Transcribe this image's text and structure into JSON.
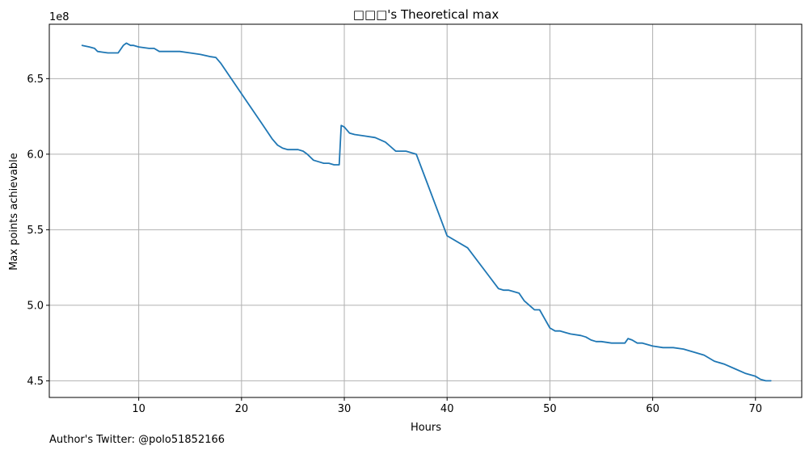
{
  "chart_data": {
    "type": "line",
    "title": "□□□'s Theoretical max",
    "xlabel": "Hours",
    "ylabel": "Max points achievable",
    "y_offset_label": "1e8",
    "xlim": [
      1.3,
      74.5
    ],
    "ylim": [
      4.39,
      6.86
    ],
    "xticks": [
      10,
      20,
      30,
      40,
      50,
      60,
      70
    ],
    "yticks": [
      4.5,
      5.0,
      5.5,
      6.0,
      6.5
    ],
    "ytick_labels": [
      "4.5",
      "5.0",
      "5.5",
      "6.0",
      "6.5"
    ],
    "grid": true,
    "legend": "none",
    "series": [
      {
        "color": "#1f77b4",
        "x": [
          4.5,
          5.2,
          5.7,
          6.0,
          6.5,
          7.0,
          7.5,
          8.0,
          8.5,
          8.8,
          9.2,
          9.5,
          10.0,
          11.0,
          11.5,
          12.0,
          12.5,
          13.0,
          14.0,
          15.0,
          16.0,
          17.0,
          17.5,
          18.0,
          20.0,
          22.0,
          23.0,
          23.5,
          24.0,
          24.5,
          25.0,
          25.5,
          26.0,
          26.4,
          27.0,
          27.5,
          28.0,
          28.5,
          29.0,
          29.5,
          29.7,
          30.0,
          30.5,
          31.0,
          32.0,
          33.0,
          34.0,
          34.5,
          35.0,
          36.0,
          37.0,
          38.0,
          40.0,
          42.0,
          44.0,
          45.0,
          45.5,
          46.0,
          47.0,
          47.5,
          48.0,
          48.5,
          49.0,
          49.5,
          50.0,
          50.5,
          51.0,
          51.5,
          52.0,
          53.0,
          53.5,
          54.0,
          54.5,
          55.0,
          56.0,
          57.0,
          57.3,
          57.6,
          58.0,
          58.5,
          59.0,
          60.0,
          61.0,
          62.0,
          63.0,
          64.0,
          65.0,
          66.0,
          67.0,
          68.0,
          69.0,
          70.0,
          70.5,
          71.0,
          71.5
        ],
        "y": [
          6.72,
          6.71,
          6.7,
          6.68,
          6.675,
          6.67,
          6.67,
          6.67,
          6.72,
          6.735,
          6.72,
          6.72,
          6.71,
          6.7,
          6.7,
          6.68,
          6.68,
          6.68,
          6.68,
          6.67,
          6.66,
          6.645,
          6.64,
          6.6,
          6.4,
          6.2,
          6.1,
          6.06,
          6.04,
          6.03,
          6.03,
          6.03,
          6.02,
          6.0,
          5.96,
          5.95,
          5.94,
          5.94,
          5.93,
          5.93,
          6.19,
          6.18,
          6.14,
          6.13,
          6.12,
          6.11,
          6.08,
          6.05,
          6.02,
          6.02,
          6.0,
          5.82,
          5.46,
          5.38,
          5.2,
          5.11,
          5.1,
          5.1,
          5.08,
          5.03,
          5.0,
          4.97,
          4.97,
          4.91,
          4.85,
          4.83,
          4.83,
          4.82,
          4.81,
          4.8,
          4.79,
          4.77,
          4.76,
          4.76,
          4.75,
          4.75,
          4.75,
          4.78,
          4.77,
          4.75,
          4.75,
          4.73,
          4.72,
          4.72,
          4.71,
          4.69,
          4.67,
          4.63,
          4.61,
          4.58,
          4.55,
          4.53,
          4.51,
          4.5,
          4.5
        ]
      }
    ]
  },
  "footer": {
    "text": "Author's Twitter: @polo51852166"
  }
}
